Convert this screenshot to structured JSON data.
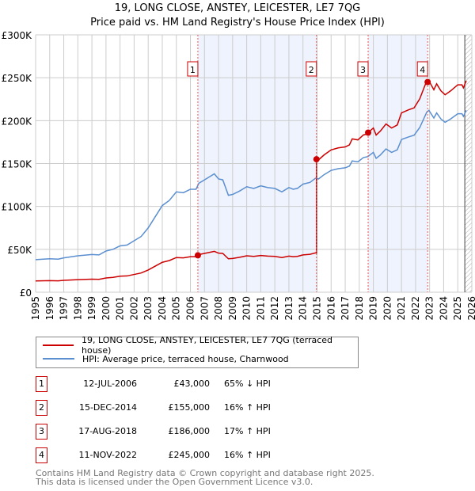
{
  "title_line1": "19, LONG CLOSE, ANSTEY, LEICESTER, LE7 7QG",
  "title_line2": "Price paid vs. HM Land Registry's House Price Index (HPI)",
  "chart_data": {
    "type": "line",
    "title": "Price paid vs. HM Land Registry's House Price Index (HPI)",
    "xlim": [
      1995,
      2026
    ],
    "ylim": [
      0,
      300000
    ],
    "grid": true,
    "y_ticks": [
      {
        "v": 0,
        "label": "£0"
      },
      {
        "v": 50000,
        "label": "£50K"
      },
      {
        "v": 100000,
        "label": "£100K"
      },
      {
        "v": 150000,
        "label": "£150K"
      },
      {
        "v": 200000,
        "label": "£200K"
      },
      {
        "v": 250000,
        "label": "£250K"
      },
      {
        "v": 300000,
        "label": "£300K"
      }
    ],
    "x_ticks": [
      "1995",
      "1996",
      "1997",
      "1998",
      "1999",
      "2000",
      "2001",
      "2002",
      "2003",
      "2004",
      "2005",
      "2006",
      "2007",
      "2008",
      "2009",
      "2010",
      "2011",
      "2012",
      "2013",
      "2014",
      "2015",
      "2016",
      "2017",
      "2018",
      "2019",
      "2020",
      "2021",
      "2022",
      "2023",
      "2024",
      "2025",
      "2026"
    ],
    "forecast_start": 2025.5,
    "series": [
      {
        "name": "HPI: Average price, terraced house, Charnwood",
        "color": "#5b8fd0",
        "x": [
          1995,
          1996,
          1996.6,
          1997,
          1998,
          1999,
          1999.5,
          2000,
          2000.5,
          2001,
          2001.5,
          2002,
          2002.5,
          2003,
          2003.5,
          2004,
          2004.5,
          2005,
          2005.5,
          2006,
          2006.4,
          2006.6,
          2007,
          2007.7,
          2008,
          2008.3,
          2008.7,
          2009,
          2009.5,
          2010,
          2010.5,
          2011,
          2011.5,
          2012,
          2012.5,
          2013,
          2013.3,
          2013.6,
          2014,
          2014.5,
          2014.9,
          2015.1,
          2015.5,
          2016,
          2016.5,
          2017,
          2017.3,
          2017.5,
          2017.9,
          2018.3,
          2018.6,
          2019,
          2019.2,
          2019.5,
          2019.9,
          2020.3,
          2020.7,
          2021,
          2021.5,
          2021.9,
          2022.3,
          2022.8,
          2022.95,
          2023.3,
          2023.5,
          2023.8,
          2024.1,
          2024.5,
          2025,
          2025.3,
          2025.4,
          2025.6
        ],
        "y": [
          38000,
          39000,
          38500,
          40000,
          42500,
          44000,
          43500,
          48000,
          50000,
          54000,
          55000,
          60000,
          65000,
          75000,
          88000,
          101000,
          107000,
          117000,
          116000,
          120000,
          120000,
          127000,
          131000,
          138000,
          132000,
          131000,
          113000,
          114000,
          118000,
          123000,
          121000,
          124000,
          122000,
          121000,
          117000,
          122000,
          120000,
          121000,
          126000,
          128000,
          133000,
          132000,
          137000,
          142000,
          144000,
          145000,
          147000,
          153000,
          152000,
          157000,
          158000,
          163000,
          156000,
          160000,
          167000,
          163000,
          166000,
          178000,
          181000,
          183000,
          192000,
          210000,
          212000,
          203000,
          209000,
          202000,
          198000,
          202000,
          208000,
          208000,
          205000,
          212000
        ]
      },
      {
        "name": "19, LONG CLOSE, ANSTEY, LEICESTER, LE7 7QG (terraced house)",
        "color": "#cc0000",
        "derived_from_hpi": true
      }
    ],
    "sales": [
      {
        "n": "1",
        "x": 2006.53,
        "date": "12-JUL-2006",
        "price": 43000,
        "price_label": "£43,000",
        "hpi": "65% ↓ HPI"
      },
      {
        "n": "2",
        "x": 2014.96,
        "date": "15-DEC-2014",
        "price": 155000,
        "price_label": "£155,000",
        "hpi": "16% ↑ HPI"
      },
      {
        "n": "3",
        "x": 2018.63,
        "date": "17-AUG-2018",
        "price": 186000,
        "price_label": "£186,000",
        "hpi": "17% ↑ HPI"
      },
      {
        "n": "4",
        "x": 2022.86,
        "date": "11-NOV-2022",
        "price": 245000,
        "price_label": "£245,000",
        "hpi": "16% ↑ HPI"
      }
    ]
  },
  "legend": {
    "property": "19, LONG CLOSE, ANSTEY, LEICESTER, LE7 7QG (terraced house)",
    "hpi": "HPI: Average price, terraced house, Charnwood"
  },
  "footer1": "Contains HM Land Registry data © Crown copyright and database right 2025.",
  "footer2": "This data is licensed under the Open Government Licence v3.0."
}
